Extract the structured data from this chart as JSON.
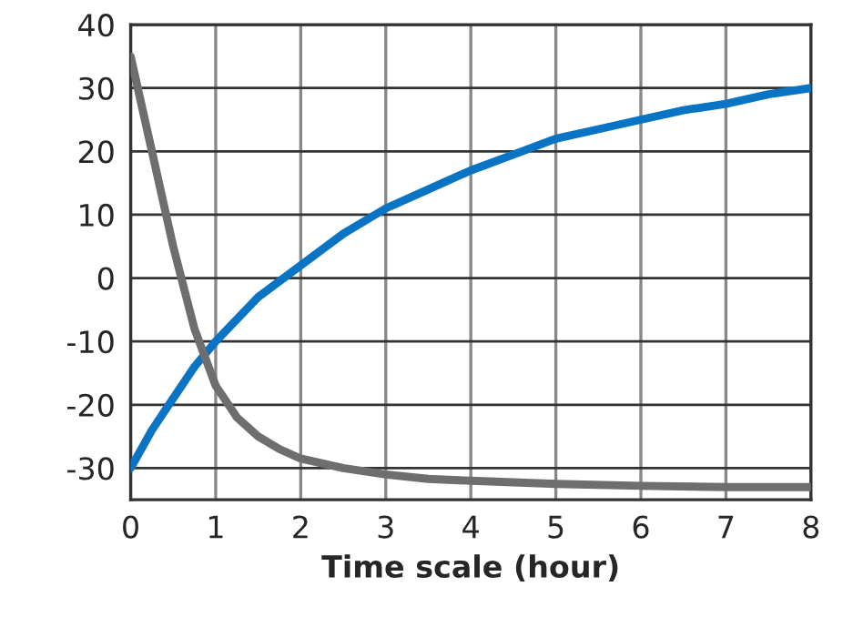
{
  "chart_data": {
    "type": "line",
    "xlabel": "Time scale (hour)",
    "xlim": [
      0,
      8
    ],
    "xticks": [
      0,
      1,
      2,
      3,
      4,
      5,
      6,
      7,
      8
    ],
    "ylim": [
      -35,
      40
    ],
    "yticks": [
      -30,
      -20,
      -10,
      0,
      10,
      20,
      30,
      40
    ],
    "grid": true,
    "marker": "none",
    "line_style": "solid",
    "series": [
      {
        "color": "#0a74c4",
        "x": [
          0,
          0.25,
          0.5,
          0.75,
          1,
          1.5,
          2,
          2.5,
          3,
          3.5,
          4,
          4.5,
          5,
          5.5,
          6,
          6.5,
          7,
          7.5,
          8
        ],
        "values": [
          -30,
          -24,
          -19,
          -14,
          -10,
          -3,
          2,
          7,
          11,
          14,
          17,
          19.5,
          22,
          23.5,
          25,
          26.5,
          27.5,
          29,
          30
        ]
      },
      {
        "color": "#6e6e6e",
        "x": [
          0,
          0.25,
          0.5,
          0.75,
          1,
          1.25,
          1.5,
          1.75,
          2,
          2.5,
          3,
          3.5,
          4,
          5,
          6,
          7,
          8
        ],
        "values": [
          35,
          20,
          5,
          -8,
          -17,
          -22,
          -25,
          -27,
          -28.5,
          -30,
          -31,
          -31.7,
          -32,
          -32.5,
          -32.8,
          -33,
          -33
        ]
      }
    ]
  }
}
